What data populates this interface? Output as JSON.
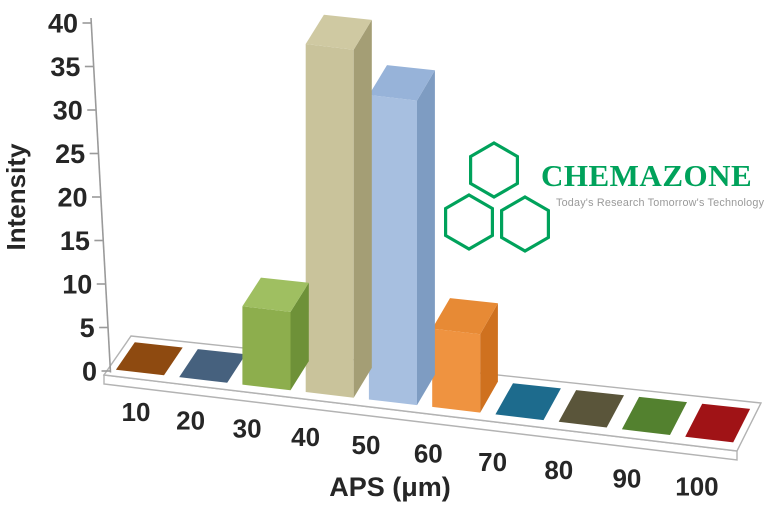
{
  "chart_data": {
    "type": "bar",
    "projection": "3d-perspective",
    "title": "",
    "xlabel": "APS (μm)",
    "ylabel": "Intensity",
    "categories": [
      "10",
      "20",
      "30",
      "40",
      "50",
      "60",
      "70",
      "80",
      "90",
      "100"
    ],
    "values": [
      0,
      0,
      9,
      40,
      35,
      9,
      0,
      0,
      0,
      0
    ],
    "ylim": [
      0,
      40
    ],
    "ytick_step": 5,
    "grid": false,
    "legend": false,
    "zero_value_rendering": "flat colored tile on chart floor",
    "text_color": "#262626",
    "axis_color": "#9a9a9a",
    "floor_fill": "#ffffff",
    "floor_edge_color": "#b3b3b3",
    "colors": [
      {
        "front": "#8E4A10"
      },
      {
        "front": "#46617E"
      },
      {
        "front": "#8DAE4D",
        "side": "#6E9138",
        "top": "#9FBF61"
      },
      {
        "front": "#C9C39B",
        "side": "#A49E75",
        "top": "#CFC9A2"
      },
      {
        "front": "#A7BFE0",
        "side": "#7E9CC2",
        "top": "#97B3D9"
      },
      {
        "front": "#EF9340",
        "side": "#CF711F",
        "top": "#E78A35"
      },
      {
        "front": "#1D6B8D"
      },
      {
        "front": "#5A553A"
      },
      {
        "front": "#53812F"
      },
      {
        "front": "#A01316"
      }
    ]
  },
  "logo": {
    "title": "CHEMAZONE",
    "tagline": "Today's Research Tomorrow's Technology",
    "color": "#00A25B",
    "tagline_color": "#9A9A9A"
  }
}
